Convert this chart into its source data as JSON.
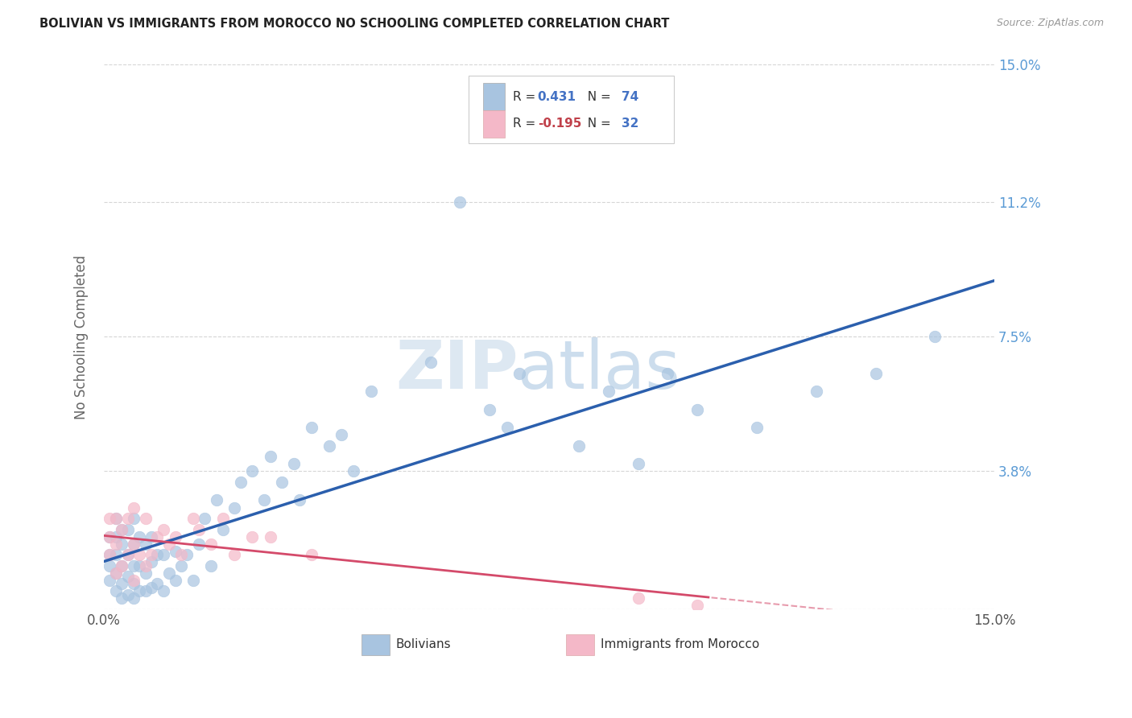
{
  "title": "BOLIVIAN VS IMMIGRANTS FROM MOROCCO NO SCHOOLING COMPLETED CORRELATION CHART",
  "source": "Source: ZipAtlas.com",
  "ylabel": "No Schooling Completed",
  "xlim": [
    0.0,
    0.15
  ],
  "ylim": [
    0.0,
    0.15
  ],
  "ytick_vals": [
    0.0,
    0.038,
    0.075,
    0.112,
    0.15
  ],
  "right_ytick_labels": [
    "",
    "3.8%",
    "7.5%",
    "11.2%",
    "15.0%"
  ],
  "xtick_vals": [
    0.0,
    0.025,
    0.05,
    0.075,
    0.1,
    0.125,
    0.15
  ],
  "xtick_labels": [
    "0.0%",
    "",
    "",
    "",
    "",
    "",
    "15.0%"
  ],
  "bolivians_color": "#a8c4e0",
  "morocco_color": "#f4b8c8",
  "bolivia_line_color": "#2b5fad",
  "morocco_line_color": "#d44a6a",
  "R_bolivia": "0.431",
  "N_bolivia": "74",
  "R_morocco": "-0.195",
  "N_morocco": "32",
  "legend_label_1": "Bolivians",
  "legend_label_2": "Immigrants from Morocco",
  "bolivians_x": [
    0.001,
    0.001,
    0.001,
    0.001,
    0.002,
    0.002,
    0.002,
    0.002,
    0.002,
    0.003,
    0.003,
    0.003,
    0.003,
    0.003,
    0.004,
    0.004,
    0.004,
    0.004,
    0.005,
    0.005,
    0.005,
    0.005,
    0.005,
    0.006,
    0.006,
    0.006,
    0.007,
    0.007,
    0.007,
    0.008,
    0.008,
    0.008,
    0.009,
    0.009,
    0.01,
    0.01,
    0.011,
    0.012,
    0.012,
    0.013,
    0.014,
    0.015,
    0.016,
    0.017,
    0.018,
    0.019,
    0.02,
    0.022,
    0.023,
    0.025,
    0.027,
    0.028,
    0.03,
    0.032,
    0.033,
    0.035,
    0.038,
    0.04,
    0.042,
    0.045,
    0.055,
    0.06,
    0.065,
    0.068,
    0.07,
    0.08,
    0.085,
    0.09,
    0.095,
    0.1,
    0.11,
    0.12,
    0.13,
    0.14
  ],
  "bolivians_y": [
    0.008,
    0.012,
    0.015,
    0.02,
    0.005,
    0.01,
    0.015,
    0.02,
    0.025,
    0.003,
    0.007,
    0.012,
    0.018,
    0.022,
    0.004,
    0.009,
    0.015,
    0.022,
    0.003,
    0.007,
    0.012,
    0.018,
    0.025,
    0.005,
    0.012,
    0.02,
    0.005,
    0.01,
    0.018,
    0.006,
    0.013,
    0.02,
    0.007,
    0.015,
    0.005,
    0.015,
    0.01,
    0.008,
    0.016,
    0.012,
    0.015,
    0.008,
    0.018,
    0.025,
    0.012,
    0.03,
    0.022,
    0.028,
    0.035,
    0.038,
    0.03,
    0.042,
    0.035,
    0.04,
    0.03,
    0.05,
    0.045,
    0.048,
    0.038,
    0.06,
    0.068,
    0.112,
    0.055,
    0.05,
    0.065,
    0.045,
    0.06,
    0.04,
    0.065,
    0.055,
    0.05,
    0.06,
    0.065,
    0.075
  ],
  "morocco_x": [
    0.001,
    0.001,
    0.001,
    0.002,
    0.002,
    0.002,
    0.003,
    0.003,
    0.004,
    0.004,
    0.005,
    0.005,
    0.005,
    0.006,
    0.007,
    0.007,
    0.008,
    0.009,
    0.01,
    0.011,
    0.012,
    0.013,
    0.015,
    0.016,
    0.018,
    0.02,
    0.022,
    0.025,
    0.028,
    0.035,
    0.09,
    0.1
  ],
  "morocco_y": [
    0.015,
    0.02,
    0.025,
    0.01,
    0.018,
    0.025,
    0.012,
    0.022,
    0.015,
    0.025,
    0.008,
    0.018,
    0.028,
    0.015,
    0.012,
    0.025,
    0.015,
    0.02,
    0.022,
    0.018,
    0.02,
    0.015,
    0.025,
    0.022,
    0.018,
    0.025,
    0.015,
    0.02,
    0.02,
    0.015,
    0.003,
    0.001
  ]
}
